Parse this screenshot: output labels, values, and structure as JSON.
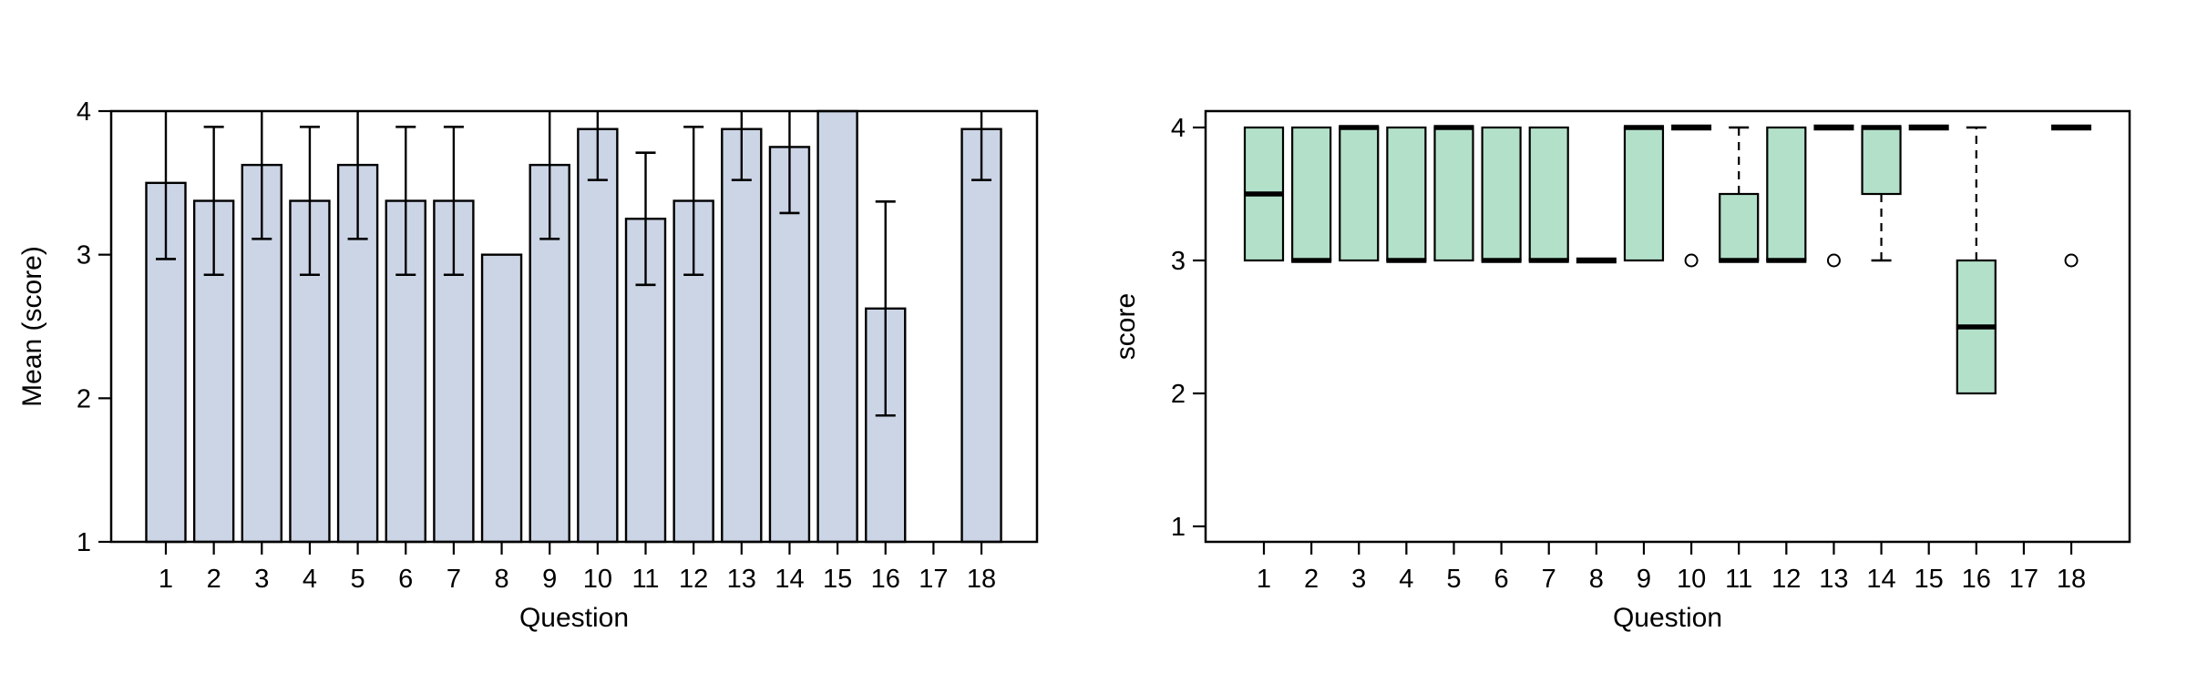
{
  "figure": {
    "background": "#ffffff"
  },
  "chart_data": [
    {
      "type": "bar",
      "title": "",
      "xlabel": "Question",
      "ylabel": "Mean (score)",
      "categories": [
        "1",
        "2",
        "3",
        "4",
        "5",
        "6",
        "7",
        "8",
        "9",
        "10",
        "11",
        "12",
        "13",
        "14",
        "15",
        "16",
        "17",
        "18"
      ],
      "values": [
        3.5,
        3.375,
        3.625,
        3.375,
        3.625,
        3.375,
        3.375,
        3.0,
        3.625,
        3.875,
        3.25,
        3.375,
        3.875,
        3.75,
        4.0,
        2.625,
        null,
        3.875
      ],
      "error_bars": [
        {
          "low": 2.97,
          "high": 4.0,
          "cap_low": true,
          "cap_high": false
        },
        {
          "low": 2.86,
          "high": 3.89,
          "cap_low": true,
          "cap_high": true
        },
        {
          "low": 3.11,
          "high": 4.0,
          "cap_low": true,
          "cap_high": false
        },
        {
          "low": 2.86,
          "high": 3.89,
          "cap_low": true,
          "cap_high": true
        },
        {
          "low": 3.11,
          "high": 4.0,
          "cap_low": true,
          "cap_high": false
        },
        {
          "low": 2.86,
          "high": 3.89,
          "cap_low": true,
          "cap_high": true
        },
        {
          "low": 2.86,
          "high": 3.89,
          "cap_low": true,
          "cap_high": true
        },
        null,
        {
          "low": 3.11,
          "high": 4.0,
          "cap_low": true,
          "cap_high": false
        },
        {
          "low": 3.52,
          "high": 4.0,
          "cap_low": true,
          "cap_high": false
        },
        {
          "low": 2.79,
          "high": 3.71,
          "cap_low": true,
          "cap_high": true
        },
        {
          "low": 2.86,
          "high": 3.89,
          "cap_low": true,
          "cap_high": true
        },
        {
          "low": 3.52,
          "high": 4.0,
          "cap_low": true,
          "cap_high": false
        },
        {
          "low": 3.29,
          "high": 4.0,
          "cap_low": true,
          "cap_high": false
        },
        null,
        {
          "low": 1.88,
          "high": 3.37,
          "cap_low": true,
          "cap_high": true
        },
        null,
        {
          "low": 3.52,
          "high": 4.0,
          "cap_low": true,
          "cap_high": false
        }
      ],
      "ylim": [
        1,
        4
      ],
      "yticks": [
        1,
        2,
        3,
        4
      ],
      "grid": false,
      "legend": null,
      "bar_fill": "#ccd5e6",
      "line_color": "#000000"
    },
    {
      "type": "boxplot",
      "title": "",
      "xlabel": "Question",
      "ylabel": "score",
      "categories": [
        "1",
        "2",
        "3",
        "4",
        "5",
        "6",
        "7",
        "8",
        "9",
        "10",
        "11",
        "12",
        "13",
        "14",
        "15",
        "16",
        "17",
        "18"
      ],
      "boxes": [
        {
          "q1": 3,
          "median": 3.5,
          "q3": 4,
          "whisker_low": 3,
          "whisker_high": 4,
          "outliers": []
        },
        {
          "q1": 3,
          "median": 3,
          "q3": 4,
          "whisker_low": 3,
          "whisker_high": 4,
          "outliers": []
        },
        {
          "q1": 3,
          "median": 4,
          "q3": 4,
          "whisker_low": 3,
          "whisker_high": 4,
          "outliers": []
        },
        {
          "q1": 3,
          "median": 3,
          "q3": 4,
          "whisker_low": 3,
          "whisker_high": 4,
          "outliers": []
        },
        {
          "q1": 3,
          "median": 4,
          "q3": 4,
          "whisker_low": 3,
          "whisker_high": 4,
          "outliers": []
        },
        {
          "q1": 3,
          "median": 3,
          "q3": 4,
          "whisker_low": 3,
          "whisker_high": 4,
          "outliers": []
        },
        {
          "q1": 3,
          "median": 3,
          "q3": 4,
          "whisker_low": 3,
          "whisker_high": 4,
          "outliers": []
        },
        {
          "q1": 3,
          "median": 3,
          "q3": 3,
          "whisker_low": 3,
          "whisker_high": 3,
          "outliers": []
        },
        {
          "q1": 3,
          "median": 4,
          "q3": 4,
          "whisker_low": 3,
          "whisker_high": 4,
          "outliers": []
        },
        {
          "q1": 4,
          "median": 4,
          "q3": 4,
          "whisker_low": 4,
          "whisker_high": 4,
          "outliers": [
            3
          ]
        },
        {
          "q1": 3,
          "median": 3,
          "q3": 3.5,
          "whisker_low": 3,
          "whisker_high": 4,
          "outliers": []
        },
        {
          "q1": 3,
          "median": 3,
          "q3": 4,
          "whisker_low": 3,
          "whisker_high": 4,
          "outliers": []
        },
        {
          "q1": 4,
          "median": 4,
          "q3": 4,
          "whisker_low": 4,
          "whisker_high": 4,
          "outliers": [
            3
          ]
        },
        {
          "q1": 3.5,
          "median": 4,
          "q3": 4,
          "whisker_low": 3,
          "whisker_high": 4,
          "outliers": []
        },
        {
          "q1": 4,
          "median": 4,
          "q3": 4,
          "whisker_low": 4,
          "whisker_high": 4,
          "outliers": []
        },
        {
          "q1": 2,
          "median": 2.5,
          "q3": 3,
          "whisker_low": 2,
          "whisker_high": 4,
          "outliers": []
        },
        null,
        {
          "q1": 4,
          "median": 4,
          "q3": 4,
          "whisker_low": 4,
          "whisker_high": 4,
          "outliers": [
            3
          ]
        }
      ],
      "ylim": [
        1,
        4
      ],
      "yticks": [
        1,
        2,
        3,
        4
      ],
      "grid": false,
      "legend": null,
      "box_fill": "#b3e0c9",
      "line_color": "#000000"
    }
  ]
}
